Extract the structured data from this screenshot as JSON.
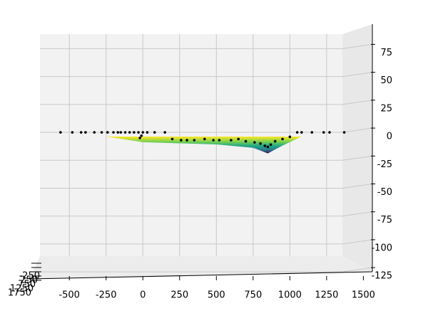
{
  "chart_data": {
    "type": "scatter3d",
    "xlim": [
      -700,
      1600
    ],
    "xticks": [
      -500,
      -250,
      0,
      250,
      500,
      750,
      1000,
      1250,
      1500
    ],
    "zlim": [
      -130,
      95
    ],
    "zticks": [
      -125,
      -100,
      -75,
      -50,
      -25,
      0,
      25,
      50,
      75
    ],
    "yticks": [
      -250,
      250,
      750,
      1250,
      1750
    ],
    "grid": true,
    "point_color": "#000000",
    "surface": {
      "x": [
        -250,
        0,
        250,
        500,
        750,
        850,
        950,
        1080
      ],
      "z": [
        0,
        -5,
        -6,
        -7,
        -10,
        -15,
        -8,
        0
      ]
    },
    "points": {
      "x": [
        -560,
        -480,
        -420,
        -390,
        -330,
        -280,
        -240,
        -200,
        -170,
        -150,
        -120,
        -90,
        -60,
        -30,
        0,
        30,
        80,
        150,
        -20,
        -10,
        200,
        260,
        300,
        350,
        420,
        480,
        520,
        600,
        650,
        700,
        760,
        800,
        830,
        850,
        870,
        900,
        950,
        1000,
        1050,
        1080,
        1150,
        1230,
        1270,
        1370
      ],
      "z": [
        0,
        0,
        0,
        0,
        0,
        0,
        0,
        0,
        0,
        0,
        0,
        0,
        0,
        0,
        0,
        0,
        0,
        0,
        -5,
        -3,
        -6,
        -7,
        -7,
        -7,
        -6,
        -7,
        -7,
        -7,
        -6,
        -8,
        -9,
        -10,
        -12,
        -13,
        -11,
        -8,
        -6,
        -4,
        0,
        0,
        0,
        0,
        0,
        0
      ]
    }
  }
}
